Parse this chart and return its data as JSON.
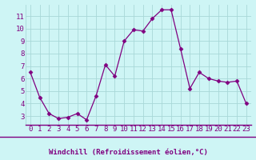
{
  "x": [
    0,
    1,
    2,
    3,
    4,
    5,
    6,
    7,
    8,
    9,
    10,
    11,
    12,
    13,
    14,
    15,
    16,
    17,
    18,
    19,
    20,
    21,
    22,
    23
  ],
  "y": [
    6.5,
    4.5,
    3.2,
    2.8,
    2.9,
    3.2,
    2.7,
    4.6,
    7.1,
    6.2,
    9.0,
    9.9,
    9.8,
    10.8,
    11.5,
    11.5,
    8.4,
    5.2,
    6.5,
    6.0,
    5.8,
    5.7,
    5.8,
    4.0
  ],
  "line_color": "#800080",
  "marker": "D",
  "marker_size": 2.5,
  "bg_color": "#cef5f5",
  "grid_color": "#a8d8d8",
  "xlabel": "Windchill (Refroidissement éolien,°C)",
  "xlabel_color": "#800080",
  "xlabel_fontsize": 6.5,
  "tick_color": "#800080",
  "tick_fontsize": 6.5,
  "xlim": [
    -0.5,
    23.5
  ],
  "ylim": [
    2.3,
    11.9
  ],
  "yticks": [
    3,
    4,
    5,
    6,
    7,
    8,
    9,
    10,
    11
  ],
  "xticks": [
    0,
    1,
    2,
    3,
    4,
    5,
    6,
    7,
    8,
    9,
    10,
    11,
    12,
    13,
    14,
    15,
    16,
    17,
    18,
    19,
    20,
    21,
    22,
    23
  ],
  "spine_color": "#800080",
  "separator_color": "#800080"
}
